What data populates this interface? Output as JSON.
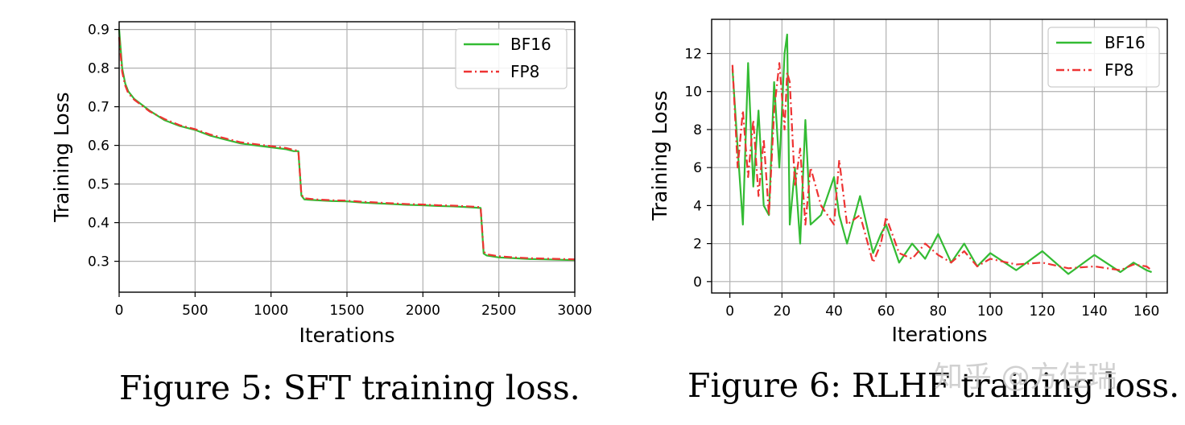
{
  "chart_data": [
    {
      "type": "line",
      "title": "",
      "caption": "Figure 5: SFT training loss.",
      "xlabel": "Iterations",
      "ylabel": "Training Loss",
      "xlim": [
        0,
        3000
      ],
      "ylim": [
        0.22,
        0.92
      ],
      "xticks": [
        0,
        500,
        1000,
        1500,
        2000,
        2500,
        3000
      ],
      "xtick_labels": [
        "0",
        "500",
        "1000",
        "1500",
        "2000",
        "2500",
        "3000"
      ],
      "yticks": [
        0.3,
        0.4,
        0.5,
        0.6,
        0.7,
        0.8,
        0.9
      ],
      "ytick_labels": [
        "0.3",
        "0.4",
        "0.5",
        "0.6",
        "0.7",
        "0.8",
        "0.9"
      ],
      "grid": true,
      "legend_position": "top-right",
      "x": [
        0,
        20,
        40,
        60,
        100,
        200,
        300,
        400,
        500,
        600,
        700,
        800,
        900,
        1000,
        1100,
        1150,
        1180,
        1200,
        1220,
        1300,
        1400,
        1500,
        1600,
        1700,
        1800,
        1900,
        2000,
        2100,
        2200,
        2300,
        2380,
        2400,
        2420,
        2500,
        2600,
        2700,
        2800,
        2900,
        3000
      ],
      "series": [
        {
          "name": "BF16",
          "color": "#33bb33",
          "style": "solid",
          "values": [
            0.9,
            0.8,
            0.76,
            0.74,
            0.72,
            0.69,
            0.665,
            0.65,
            0.64,
            0.625,
            0.615,
            0.605,
            0.6,
            0.595,
            0.59,
            0.585,
            0.585,
            0.47,
            0.46,
            0.458,
            0.456,
            0.455,
            0.452,
            0.45,
            0.448,
            0.446,
            0.445,
            0.443,
            0.442,
            0.44,
            0.438,
            0.32,
            0.315,
            0.31,
            0.308,
            0.306,
            0.305,
            0.304,
            0.303
          ]
        },
        {
          "name": "FP8",
          "color": "#ee3333",
          "style": "dashdot",
          "values": [
            0.88,
            0.79,
            0.755,
            0.735,
            0.718,
            0.688,
            0.668,
            0.652,
            0.642,
            0.628,
            0.618,
            0.608,
            0.603,
            0.598,
            0.593,
            0.588,
            0.586,
            0.472,
            0.463,
            0.46,
            0.458,
            0.457,
            0.454,
            0.452,
            0.45,
            0.448,
            0.447,
            0.445,
            0.444,
            0.442,
            0.44,
            0.325,
            0.318,
            0.313,
            0.31,
            0.308,
            0.307,
            0.306,
            0.305
          ]
        }
      ]
    },
    {
      "type": "line",
      "title": "",
      "caption": "Figure 6: RLHF training loss.",
      "xlabel": "Iterations",
      "ylabel": "Training Loss",
      "xlim": [
        -7,
        168
      ],
      "ylim": [
        -0.6,
        13.8
      ],
      "xticks": [
        0,
        20,
        40,
        60,
        80,
        100,
        120,
        140,
        160
      ],
      "xtick_labels": [
        "0",
        "20",
        "40",
        "60",
        "80",
        "100",
        "120",
        "140",
        "160"
      ],
      "yticks": [
        0,
        2,
        4,
        6,
        8,
        10,
        12
      ],
      "ytick_labels": [
        "0",
        "2",
        "4",
        "6",
        "8",
        "10",
        "12"
      ],
      "grid": true,
      "legend_position": "top-right",
      "x": [
        1,
        3,
        5,
        7,
        9,
        11,
        13,
        15,
        17,
        19,
        21,
        22,
        23,
        25,
        27,
        29,
        31,
        35,
        40,
        42,
        45,
        50,
        55,
        58,
        60,
        65,
        70,
        75,
        80,
        85,
        90,
        95,
        100,
        110,
        120,
        130,
        140,
        150,
        155,
        160,
        162
      ],
      "series": [
        {
          "name": "BF16",
          "color": "#33bb33",
          "style": "solid",
          "values": [
            11.2,
            7.0,
            3.0,
            11.5,
            5.0,
            9.0,
            4.0,
            3.5,
            10.5,
            6.0,
            12.0,
            13.0,
            3.0,
            6.0,
            2.0,
            8.5,
            3.0,
            3.5,
            5.5,
            3.5,
            2.0,
            4.5,
            1.5,
            2.5,
            3.0,
            1.0,
            2.0,
            1.2,
            2.5,
            1.0,
            2.0,
            0.8,
            1.5,
            0.6,
            1.6,
            0.4,
            1.4,
            0.5,
            1.0,
            0.6,
            0.5
          ]
        },
        {
          "name": "FP8",
          "color": "#ee3333",
          "style": "dashdot",
          "values": [
            11.4,
            6.0,
            9.0,
            5.5,
            8.5,
            4.5,
            7.5,
            3.5,
            9.0,
            11.5,
            8.0,
            11.0,
            10.5,
            5.0,
            7.0,
            3.0,
            6.0,
            4.0,
            3.0,
            6.4,
            3.0,
            3.5,
            1.0,
            2.0,
            3.4,
            1.5,
            1.2,
            2.0,
            1.4,
            1.0,
            1.6,
            0.8,
            1.2,
            0.9,
            1.0,
            0.7,
            0.8,
            0.6,
            0.9,
            0.8,
            0.6
          ]
        }
      ]
    }
  ],
  "watermark": "知乎 @方佳瑞"
}
